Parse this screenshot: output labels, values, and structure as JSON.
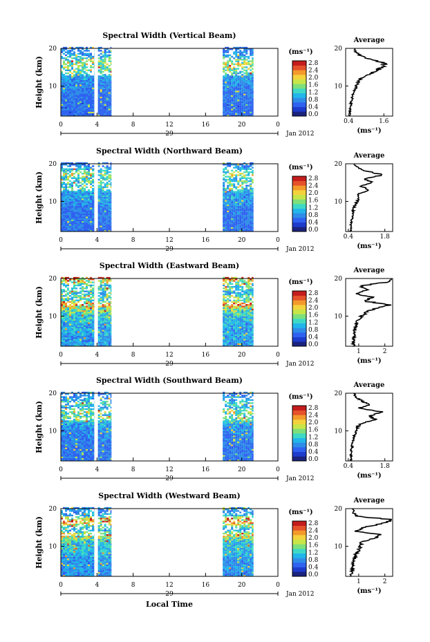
{
  "page": {
    "xlabel": "Local Time",
    "x_ticks": [
      "0",
      "4",
      "8",
      "12",
      "16",
      "20",
      "0"
    ],
    "date_tick": "29",
    "date_label": "Jan 2012",
    "y_ticks": [
      "20",
      "10"
    ],
    "ylabel": "Height (km)",
    "colorbar_unit": "(ms⁻¹)",
    "colorbar_ticks": [
      "2.8",
      "2.4",
      "2.0",
      "1.6",
      "1.2",
      "0.8",
      "0.4",
      "0.0"
    ],
    "avg_title": "Average",
    "avg_unit": "(ms⁻¹)"
  },
  "colors": {
    "scale": [
      "#1a237e",
      "#1e3ccc",
      "#2f62f0",
      "#2f8de8",
      "#22b6ea",
      "#3ed9c6",
      "#7de07a",
      "#c8e548",
      "#f4d23c",
      "#f39a2b",
      "#e5512a",
      "#c41c1c"
    ]
  },
  "chart_data": [
    {
      "type": "heatmap",
      "title": "Spectral Width (Vertical Beam)",
      "xlim": [
        0,
        24
      ],
      "ylim": [
        2,
        20
      ],
      "data_windows_hours": [
        [
          0,
          3.7
        ],
        [
          4.1,
          5.6
        ],
        [
          17.9,
          21.3
        ]
      ],
      "levels": [
        0.0,
        0.4,
        0.8,
        1.2,
        1.6,
        2.0,
        2.4,
        2.8
      ],
      "avg_xticks": [
        "0.4",
        "1.6"
      ],
      "average_profile": {
        "height_km": [
          2,
          4,
          6,
          8,
          9,
          10,
          11,
          12,
          13,
          14,
          15,
          16,
          17,
          18,
          19,
          20
        ],
        "value": [
          0.45,
          0.45,
          0.5,
          0.55,
          0.62,
          0.66,
          0.72,
          0.8,
          1.05,
          1.35,
          1.55,
          1.6,
          1.2,
          0.8,
          0.65,
          0.6
        ]
      }
    },
    {
      "type": "heatmap",
      "title": "Spectral Width (Northward Beam)",
      "xlim": [
        0,
        24
      ],
      "ylim": [
        2,
        20
      ],
      "data_windows_hours": [
        [
          0,
          3.7
        ],
        [
          4.1,
          5.6
        ],
        [
          17.9,
          21.3
        ]
      ],
      "levels": [
        0.0,
        0.4,
        0.8,
        1.2,
        1.6,
        2.0,
        2.4,
        2.8
      ],
      "avg_xticks": [
        "0.4",
        "1.8"
      ],
      "average_profile": {
        "height_km": [
          2,
          4,
          6,
          8,
          9,
          10,
          11,
          12,
          13,
          14,
          15,
          16,
          17,
          18,
          19,
          20
        ],
        "value": [
          0.5,
          0.5,
          0.55,
          0.6,
          0.65,
          0.75,
          0.85,
          0.75,
          1.25,
          0.9,
          1.35,
          1.0,
          1.75,
          1.1,
          0.75,
          0.6
        ]
      }
    },
    {
      "type": "heatmap",
      "title": "Spectral Width (Eastward Beam)",
      "xlim": [
        0,
        24
      ],
      "ylim": [
        2,
        20
      ],
      "data_windows_hours": [
        [
          0,
          3.7
        ],
        [
          4.1,
          5.6
        ],
        [
          17.9,
          21.3
        ]
      ],
      "levels": [
        0.0,
        0.4,
        0.8,
        1.2,
        1.6,
        2.0,
        2.4,
        2.8
      ],
      "avg_xticks": [
        "1",
        "2"
      ],
      "average_profile": {
        "height_km": [
          2,
          4,
          6,
          8,
          9,
          10,
          11,
          12,
          13,
          14,
          15,
          16,
          17,
          18,
          19,
          20
        ],
        "value": [
          0.8,
          0.8,
          0.85,
          0.9,
          1.0,
          1.1,
          1.3,
          1.6,
          2.2,
          1.2,
          1.5,
          0.9,
          1.3,
          1.1,
          2.0,
          2.6
        ]
      }
    },
    {
      "type": "heatmap",
      "title": "Spectral Width (Southward Beam)",
      "xlim": [
        0,
        24
      ],
      "ylim": [
        2,
        20
      ],
      "data_windows_hours": [
        [
          0,
          3.7
        ],
        [
          4.1,
          5.6
        ],
        [
          17.9,
          21.3
        ]
      ],
      "levels": [
        0.0,
        0.4,
        0.8,
        1.2,
        1.6,
        2.0,
        2.4,
        2.8
      ],
      "avg_xticks": [
        "0.4",
        "1.8"
      ],
      "average_profile": {
        "height_km": [
          2,
          4,
          6,
          8,
          9,
          10,
          11,
          12,
          13,
          14,
          15,
          16,
          17,
          18,
          19,
          20
        ],
        "value": [
          0.5,
          0.5,
          0.55,
          0.6,
          0.65,
          0.7,
          0.75,
          0.9,
          1.5,
          1.2,
          1.7,
          0.8,
          1.2,
          0.9,
          0.7,
          0.6
        ]
      }
    },
    {
      "type": "heatmap",
      "title": "Spectral Width (Westward Beam)",
      "xlim": [
        0,
        24
      ],
      "ylim": [
        2,
        20
      ],
      "data_windows_hours": [
        [
          0,
          3.7
        ],
        [
          4.1,
          5.6
        ],
        [
          17.9,
          21.3
        ]
      ],
      "levels": [
        0.0,
        0.4,
        0.8,
        1.2,
        1.6,
        2.0,
        2.4,
        2.8
      ],
      "avg_xticks": [
        "1",
        "2"
      ],
      "average_profile": {
        "height_km": [
          2,
          4,
          6,
          8,
          9,
          10,
          11,
          12,
          13,
          14,
          15,
          16,
          17,
          18,
          19,
          20
        ],
        "value": [
          0.7,
          0.75,
          0.8,
          0.9,
          1.0,
          1.05,
          1.1,
          1.5,
          1.9,
          0.9,
          1.2,
          1.9,
          2.4,
          0.9,
          0.8,
          0.75
        ]
      }
    }
  ]
}
